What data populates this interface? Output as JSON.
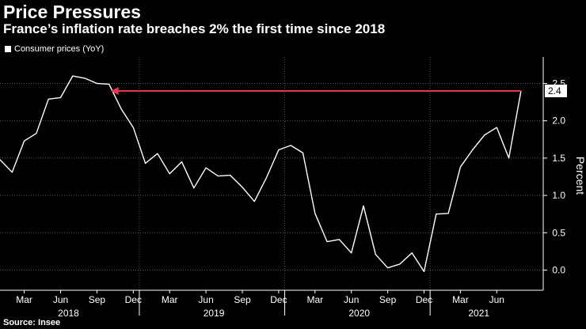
{
  "header": {
    "title": "Price Pressures",
    "subtitle": "France’s inflation rate breaches 2% the first time since 2018"
  },
  "footer": {
    "source": "Source: Insee"
  },
  "colors": {
    "background": "#000000",
    "line": "#ffffff",
    "arrow": "#e8344e",
    "grid": "#555555"
  },
  "chart_data": {
    "type": "line",
    "legend_position": "top-left",
    "grid": true,
    "ylabel": "Percent",
    "ylim": [
      -0.3,
      2.8
    ],
    "yticks": [
      "0.0",
      "0.5",
      "1.0",
      "1.5",
      "2.0",
      "2.5"
    ],
    "x_tick_labels": [
      "Mar",
      "Jun",
      "Sep",
      "Dec",
      "Mar",
      "Jun",
      "Sep",
      "Dec",
      "Mar",
      "Jun",
      "Sep",
      "Dec",
      "Mar",
      "Jun"
    ],
    "year_labels": [
      "2018",
      "2019",
      "2020",
      "2021"
    ],
    "series": [
      {
        "name": "Consumer prices (YoY)",
        "x": [
          "2018-01",
          "2018-02",
          "2018-03",
          "2018-04",
          "2018-05",
          "2018-06",
          "2018-07",
          "2018-08",
          "2018-09",
          "2018-10",
          "2018-11",
          "2018-12",
          "2019-01",
          "2019-02",
          "2019-03",
          "2019-04",
          "2019-05",
          "2019-06",
          "2019-07",
          "2019-08",
          "2019-09",
          "2019-10",
          "2019-11",
          "2019-12",
          "2020-01",
          "2020-02",
          "2020-03",
          "2020-04",
          "2020-05",
          "2020-06",
          "2020-07",
          "2020-08",
          "2020-09",
          "2020-10",
          "2020-11",
          "2020-12",
          "2021-01",
          "2021-02",
          "2021-03",
          "2021-04",
          "2021-05",
          "2021-06",
          "2021-07",
          "2021-08"
        ],
        "values": [
          1.48,
          1.31,
          1.73,
          1.83,
          2.29,
          2.31,
          2.6,
          2.57,
          2.5,
          2.49,
          2.16,
          1.91,
          1.43,
          1.56,
          1.29,
          1.45,
          1.1,
          1.37,
          1.26,
          1.27,
          1.11,
          0.92,
          1.24,
          1.61,
          1.67,
          1.57,
          0.76,
          0.38,
          0.41,
          0.23,
          0.86,
          0.21,
          0.03,
          0.08,
          0.23,
          -0.02,
          0.75,
          0.76,
          1.38,
          1.61,
          1.81,
          1.91,
          1.5,
          2.4
        ]
      }
    ],
    "annotation": {
      "label": "2.4",
      "from_value": 2.4,
      "from": "2018-10",
      "to": "2021-08"
    }
  }
}
